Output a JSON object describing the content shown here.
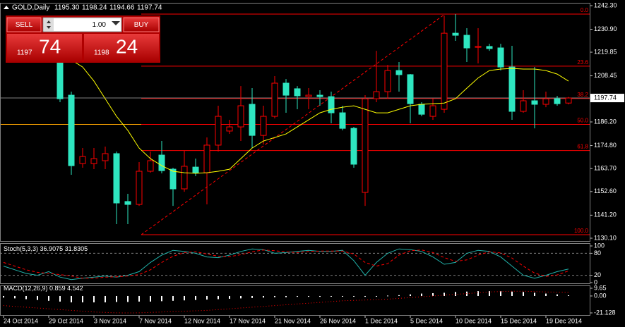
{
  "header": {
    "symbol": "GOLD,Daily",
    "ohlc": [
      "1195.30",
      "1198.24",
      "1194.66",
      "1197.74"
    ]
  },
  "trade_panel": {
    "sell": "SELL",
    "buy": "BUY",
    "lot": "1.00",
    "bid_prefix": "1197",
    "bid_pips": "74",
    "ask_prefix": "1198",
    "ask_pips": "24"
  },
  "chart_data": [
    {
      "type": "candlestick",
      "categories": [
        "24 Oct 2014",
        null,
        null,
        null,
        "29 Oct 2014",
        null,
        null,
        null,
        "3 Nov 2014",
        null,
        null,
        null,
        "7 Nov 2014",
        null,
        null,
        null,
        "12 Nov 2014",
        null,
        null,
        null,
        "17 Nov 2014",
        null,
        null,
        null,
        "21 Nov 2014",
        null,
        null,
        null,
        "26 Nov 2014",
        null,
        null,
        null,
        "1 Dec 2014",
        null,
        null,
        null,
        "5 Dec 2014",
        null,
        null,
        null,
        "10 Dec 2014",
        null,
        null,
        null,
        "15 Dec 2014",
        null,
        null,
        null,
        "19 Dec 2014",
        null,
        null
      ],
      "open": [
        null,
        null,
        null,
        null,
        null,
        1216.1,
        1199.1,
        1166.1,
        1166.1,
        1167.5,
        1170.9,
        1147.8,
        1146.4,
        1162.4,
        1170.2,
        1163.4,
        1153.9,
        1164.4,
        1161.7,
        1175.0,
        1181.8,
        1183.8,
        1194.7,
        1179.7,
        1188.9,
        1204.9,
        1202.2,
        1198.4,
        1199.1,
        1198.4,
        1190.6,
        1183.1,
        1152.2,
        1197.4,
        1200.8,
        1211.0,
        1209.0,
        1194.7,
        1188.9,
        1192.3,
        1229.0,
        1228.0,
        1222.2,
        1222.6,
        1221.9,
        1212.7,
        1191.3,
        1196.4,
        1194.7,
        1197.4,
        1195.3
      ],
      "high": [
        null,
        null,
        null,
        null,
        null,
        1217.8,
        1200.8,
        1173.6,
        1173.6,
        1174.3,
        1171.9,
        1151.5,
        1166.8,
        1171.9,
        1177.0,
        1164.1,
        1172.3,
        1168.5,
        1178.7,
        1194.0,
        1187.2,
        1203.5,
        1202.5,
        1194.0,
        1208.3,
        1206.9,
        1203.5,
        1202.5,
        1201.5,
        1200.8,
        1194.0,
        1183.8,
        1199.1,
        1220.5,
        1213.7,
        1215.1,
        1209.3,
        1195.7,
        1197.4,
        1237.5,
        1238.2,
        1231.4,
        1231.4,
        1223.9,
        1223.9,
        1222.9,
        1201.5,
        1212.7,
        1200.8,
        1198.8,
        1198.24
      ],
      "low": [
        null,
        null,
        null,
        null,
        null,
        1195.7,
        1160.7,
        1164.1,
        1163.4,
        1163.4,
        1136.9,
        1136.9,
        1145.7,
        1161.7,
        1161.4,
        1145.7,
        1152.5,
        1160.0,
        1146.4,
        1171.9,
        1180.4,
        1177.0,
        1173.6,
        1175.3,
        1187.9,
        1190.6,
        1192.3,
        1192.3,
        1194.0,
        1185.5,
        1182.1,
        1164.1,
        1145.7,
        1195.7,
        1197.4,
        1200.8,
        1185.5,
        1188.9,
        1187.2,
        1190.6,
        1225.3,
        1215.1,
        1214.4,
        1220.5,
        1211.0,
        1187.2,
        1190.6,
        1183.1,
        1193.3,
        1194.0,
        1194.66
      ],
      "close": [
        null,
        null,
        null,
        null,
        null,
        1197.4,
        1165.1,
        1169.5,
        1168.5,
        1170.9,
        1147.1,
        1146.4,
        1162.4,
        1167.5,
        1162.7,
        1153.9,
        1164.8,
        1161.7,
        1175.0,
        1188.9,
        1183.8,
        1194.0,
        1179.7,
        1188.9,
        1204.9,
        1199.1,
        1198.8,
        1199.1,
        1198.4,
        1190.6,
        1183.1,
        1165.8,
        1197.4,
        1200.8,
        1211.0,
        1209.0,
        1195.0,
        1189.9,
        1194.0,
        1229.0,
        1228.0,
        1221.9,
        1222.6,
        1221.6,
        1212.7,
        1191.3,
        1196.4,
        1194.7,
        1197.4,
        1195.0,
        1197.74
      ],
      "up_color": "#ff0000",
      "down_color": "#2ee6c0",
      "ma": {
        "color": "#ffff00",
        "values": [
          null,
          null,
          null,
          null,
          null,
          null,
          1216.1,
          1212.7,
          1205.9,
          1197.4,
          1188.9,
          1182.1,
          1173.6,
          1168.5,
          1165.1,
          1162.4,
          1161.7,
          1161.4,
          1161.7,
          1162.4,
          1163.4,
          1168.5,
          1173.6,
          1177.0,
          1178.7,
          1180.4,
          1183.8,
          1187.2,
          1190.6,
          1192.3,
          1193.3,
          1194.0,
          1192.3,
          1190.6,
          1190.6,
          1192.3,
          1194.0,
          1194.7,
          1195.0,
          1195.3,
          1197.4,
          1202.5,
          1207.4,
          1211.0,
          1211.7,
          1212.0,
          1211.7,
          1211.7,
          1211.0,
          1209.3,
          1205.9
        ]
      },
      "fib": {
        "color": "#ff0000",
        "levels": [
          "0.0",
          "23.6",
          "38.2",
          "50.0",
          "61.8",
          "100.0"
        ],
        "prices": [
          1238.2,
          1213.1,
          1197.5,
          1185.0,
          1172.4,
          1131.8
        ]
      },
      "hlines": [
        {
          "value": 1185.0,
          "color": "#ffa500"
        }
      ],
      "current_price_color": "#808080",
      "ylim": [
        1130.1,
        1242.3
      ],
      "yticks": [
        {
          "value": 1242.3,
          "label": "1242.30"
        },
        {
          "value": 1230.9,
          "label": "1230.90"
        },
        {
          "value": 1219.85,
          "label": "1219.85"
        },
        {
          "value": 1208.45,
          "label": "1208.45"
        },
        {
          "value": 1186.2,
          "label": "1186.20"
        },
        {
          "value": 1174.8,
          "label": "1174.80"
        },
        {
          "value": 1163.7,
          "label": "1163.70"
        },
        {
          "value": 1152.6,
          "label": "1152.60"
        },
        {
          "value": 1141.2,
          "label": "1141.20"
        },
        {
          "value": 1130.1,
          "label": "1130.10"
        }
      ]
    },
    {
      "type": "line",
      "title": "Stoch(5,3,3)",
      "grid": true,
      "ylim": [
        0,
        100
      ],
      "yticks": [
        100,
        80,
        20,
        0
      ],
      "series": [
        {
          "color": "#20b2aa",
          "style": "solid",
          "values": [
            45,
            35,
            25,
            20,
            30,
            15,
            8,
            12,
            15,
            18,
            15,
            20,
            30,
            55,
            75,
            88,
            85,
            80,
            70,
            68,
            75,
            85,
            92,
            90,
            80,
            82,
            85,
            88,
            85,
            85,
            88,
            60,
            20,
            55,
            80,
            92,
            90,
            85,
            70,
            50,
            55,
            80,
            88,
            85,
            70,
            45,
            20,
            12,
            20,
            30,
            36.9075
          ]
        },
        {
          "color": "#ff0000",
          "style": "dashed",
          "values": [
            55,
            45,
            35,
            28,
            25,
            22,
            18,
            12,
            12,
            15,
            16,
            18,
            22,
            35,
            55,
            72,
            82,
            84,
            78,
            72,
            71,
            76,
            84,
            89,
            87,
            84,
            82,
            85,
            86,
            86,
            86,
            78,
            55,
            45,
            52,
            75,
            87,
            89,
            82,
            68,
            58,
            62,
            75,
            84,
            81,
            67,
            45,
            26,
            17,
            21,
            31.8305
          ]
        }
      ]
    },
    {
      "type": "bar",
      "title": "MACD(12,26,9)",
      "ylim": [
        -21.128,
        9.65
      ],
      "yticks": [
        9.65,
        {
          "value": 0,
          "label": "0.00"
        },
        -21.128
      ],
      "series": [
        {
          "type": "bar",
          "color": "#ffffff",
          "values": [
            -2,
            -3,
            -4,
            -5,
            -6,
            -7,
            -8,
            -8,
            -8,
            -8,
            -7.5,
            -7.5,
            -7,
            -7,
            -6.5,
            -6,
            -5.5,
            -5,
            -4.5,
            -4,
            -3.5,
            -3,
            -2.5,
            -2,
            -1.5,
            -1.5,
            -1,
            -1,
            -1,
            -0.5,
            -0.5,
            -0.5,
            -1,
            -0.5,
            0.5,
            1,
            2,
            3,
            3.5,
            4,
            5,
            5.5,
            6,
            6,
            6,
            5.5,
            5,
            4,
            3,
            2,
            0.859
          ]
        },
        {
          "type": "line",
          "color": "#ff0000",
          "style": "dotted",
          "values": [
            -12,
            -13,
            -14,
            -15,
            -16,
            -17,
            -18,
            -19,
            -20,
            -20.5,
            -21,
            -21.128,
            -21,
            -20.5,
            -20,
            -19.5,
            -19,
            -18.5,
            -18,
            -17,
            -16,
            -15,
            -14,
            -13,
            -12,
            -11,
            -10,
            -9,
            -8,
            -7,
            -6,
            -5.5,
            -5,
            -4.5,
            -4,
            -3,
            -2,
            -1,
            0,
            1,
            2,
            3,
            4,
            5,
            5.5,
            6,
            6,
            5.5,
            5,
            4.8,
            4.542
          ]
        }
      ]
    }
  ]
}
